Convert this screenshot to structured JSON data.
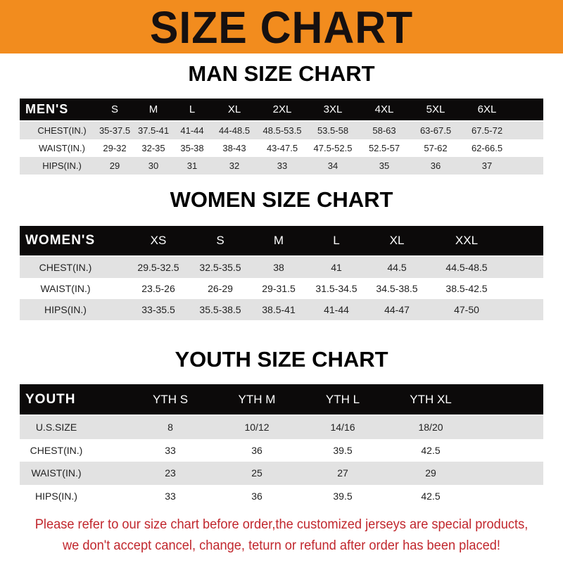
{
  "banner": {
    "title": "SIZE CHART",
    "color": "#f28c1e"
  },
  "men": {
    "heading": "MAN SIZE CHART",
    "header": [
      "MEN'S",
      "S",
      "M",
      "L",
      "XL",
      "2XL",
      "3XL",
      "4XL",
      "5XL",
      "6XL"
    ],
    "rows": [
      [
        "CHEST(IN.)",
        "35-37.5",
        "37.5-41",
        "41-44",
        "44-48.5",
        "48.5-53.5",
        "53.5-58",
        "58-63",
        "63-67.5",
        "67.5-72"
      ],
      [
        "WAIST(IN.)",
        "29-32",
        "32-35",
        "35-38",
        "38-43",
        "43-47.5",
        "47.5-52.5",
        "52.5-57",
        "57-62",
        "62-66.5"
      ],
      [
        "HIPS(IN.)",
        "29",
        "30",
        "31",
        "32",
        "33",
        "34",
        "35",
        "36",
        "37"
      ]
    ]
  },
  "women": {
    "heading": "WOMEN SIZE CHART",
    "header": [
      "WOMEN'S",
      "XS",
      "S",
      "M",
      "L",
      "XL",
      "XXL"
    ],
    "rows": [
      [
        "CHEST(IN.)",
        "29.5-32.5",
        "32.5-35.5",
        "38",
        "41",
        "44.5",
        "44.5-48.5"
      ],
      [
        "WAIST(IN.)",
        "23.5-26",
        "26-29",
        "29-31.5",
        "31.5-34.5",
        "34.5-38.5",
        "38.5-42.5"
      ],
      [
        "HIPS(IN.)",
        "33-35.5",
        "35.5-38.5",
        "38.5-41",
        "41-44",
        "44-47",
        "47-50"
      ]
    ]
  },
  "youth": {
    "heading": "YOUTH SIZE CHART",
    "header": [
      "YOUTH",
      "YTH S",
      "YTH M",
      "YTH L",
      "YTH XL"
    ],
    "rows": [
      [
        "U.S.SIZE",
        "8",
        "10/12",
        "14/16",
        "18/20"
      ],
      [
        "CHEST(IN.)",
        "33",
        "36",
        "39.5",
        "42.5"
      ],
      [
        "WAIST(IN.)",
        "23",
        "25",
        "27",
        "29"
      ],
      [
        "HIPS(IN.)",
        "33",
        "36",
        "39.5",
        "42.5"
      ]
    ]
  },
  "notice": {
    "line1": "Please refer to our size chart before order,the customized jerseys are special products,",
    "line2": "we don't accept cancel, change, teturn or refund after order has been placed!",
    "color": "#c1272d"
  }
}
